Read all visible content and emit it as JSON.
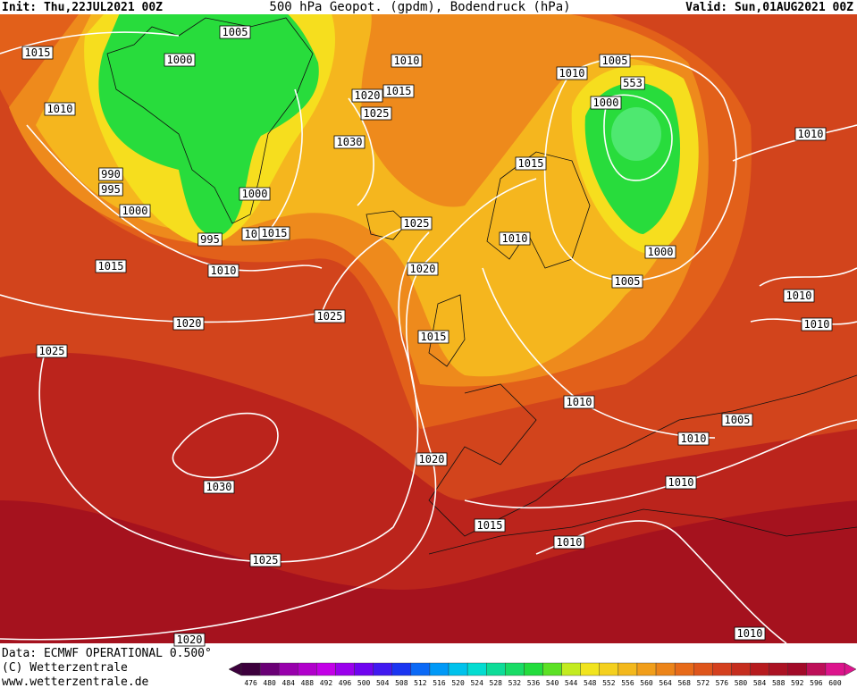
{
  "header": {
    "init": "Init: Thu,22JUL2021 00Z",
    "title": "500 hPa Geopot. (gpdm), Bodendruck (hPa)",
    "valid": "Valid: Sun,01AUG2021 00Z"
  },
  "isobar_labels": [
    "1005",
    "1015",
    "1000",
    "1010",
    "1010",
    "1005",
    "553",
    "1010",
    "1020",
    "1015",
    "1025",
    "1000",
    "1030",
    "1010",
    "1015",
    "990",
    "995",
    "1000",
    "1000",
    "1025",
    "995",
    "1010",
    "1015",
    "1010",
    "1000",
    "1015",
    "1010",
    "1020",
    "1005",
    "1010",
    "1010",
    "1025",
    "1020",
    "1015",
    "1025",
    "1010",
    "1005",
    "1010",
    "1020",
    "1030",
    "1010",
    "1015",
    "1010",
    "1025",
    "1020",
    "1010"
  ],
  "footer": {
    "data": "Data: ECMWF OPERATIONAL 0.500°",
    "copyright": "(C) Wetterzentrale",
    "url": "www.wetterzentrale.de"
  },
  "colorbar": {
    "values": [
      476,
      480,
      484,
      488,
      492,
      496,
      500,
      504,
      508,
      512,
      516,
      520,
      524,
      528,
      532,
      536,
      540,
      544,
      548,
      552,
      556,
      560,
      564,
      568,
      572,
      576,
      580,
      584,
      588,
      592,
      596,
      600
    ]
  }
}
